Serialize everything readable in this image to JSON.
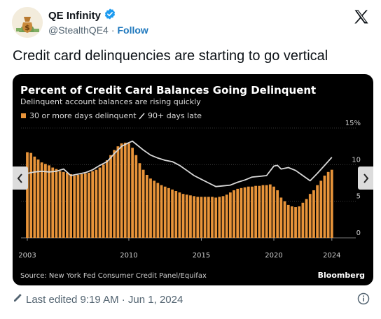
{
  "tweet": {
    "author_name": "QE Infinity",
    "author_handle": "@StealthQE4",
    "separator": "·",
    "follow_label": "Follow",
    "text": "Credit card delinquencies are starting to go vertical",
    "edited_label": "Last edited 9:19 AM · Jun 1, 2024"
  },
  "colors": {
    "bar": "#e8943a",
    "line": "#d8d8d8",
    "verified": "#1d9bf0",
    "follow": "#1d77bd"
  },
  "icons": {
    "verified": "verified-badge-icon",
    "x": "x-logo-icon",
    "edit": "pencil-icon",
    "info": "info-icon",
    "prev": "chevron-left-icon",
    "next": "chevron-right-icon"
  },
  "chart_data": {
    "type": "bar",
    "title": "Percent of Credit Card Balances Going Delinquent",
    "subtitle": "Delinquent account balances are rising quickly",
    "legend": [
      {
        "name": "30 or more days delinquent",
        "marker": "bar"
      },
      {
        "name": "90+ days late",
        "marker": "line"
      }
    ],
    "source": "Source: New York Fed Consumer Credit Panel/Equifax",
    "brand": "Bloomberg",
    "x_ticks": [
      "2003",
      "2010",
      "2015",
      "2020",
      "2024"
    ],
    "y_ticks": [
      "15%",
      "10",
      "5",
      "0"
    ],
    "ylim": [
      0,
      15
    ],
    "x_range": [
      2003.0,
      2024.25
    ],
    "series": [
      {
        "name": "30 or more days delinquent",
        "render": "bars",
        "x": [
          2003.0,
          2003.25,
          2003.5,
          2003.75,
          2004.0,
          2004.25,
          2004.5,
          2004.75,
          2005.0,
          2005.25,
          2005.5,
          2005.75,
          2006.0,
          2006.25,
          2006.5,
          2006.75,
          2007.0,
          2007.25,
          2007.5,
          2007.75,
          2008.0,
          2008.25,
          2008.5,
          2008.75,
          2009.0,
          2009.25,
          2009.5,
          2009.75,
          2010.0,
          2010.25,
          2010.5,
          2010.75,
          2011.0,
          2011.25,
          2011.5,
          2011.75,
          2012.0,
          2012.25,
          2012.5,
          2012.75,
          2013.0,
          2013.25,
          2013.5,
          2013.75,
          2014.0,
          2014.25,
          2014.5,
          2014.75,
          2015.0,
          2015.25,
          2015.5,
          2015.75,
          2016.0,
          2016.25,
          2016.5,
          2016.75,
          2017.0,
          2017.25,
          2017.5,
          2017.75,
          2018.0,
          2018.25,
          2018.5,
          2018.75,
          2019.0,
          2019.25,
          2019.5,
          2019.75,
          2020.0,
          2020.25,
          2020.5,
          2020.75,
          2021.0,
          2021.25,
          2021.5,
          2021.75,
          2022.0,
          2022.25,
          2022.5,
          2022.75,
          2023.0,
          2023.25,
          2023.5,
          2023.75,
          2024.0
        ],
        "values": [
          11.7,
          11.6,
          11.1,
          10.7,
          10.3,
          10.1,
          9.9,
          9.6,
          9.4,
          9.1,
          9.0,
          8.9,
          8.7,
          8.5,
          8.6,
          8.7,
          8.8,
          8.9,
          9.1,
          9.3,
          9.6,
          10.0,
          10.6,
          11.3,
          12.0,
          12.5,
          12.9,
          13.0,
          12.9,
          12.3,
          11.3,
          10.2,
          9.3,
          8.6,
          8.1,
          7.8,
          7.5,
          7.2,
          7.0,
          6.8,
          6.6,
          6.4,
          6.2,
          6.0,
          5.9,
          5.8,
          5.7,
          5.6,
          5.6,
          5.6,
          5.6,
          5.6,
          5.5,
          5.6,
          5.7,
          5.9,
          6.2,
          6.5,
          6.7,
          6.8,
          6.9,
          7.0,
          7.0,
          7.1,
          7.1,
          7.2,
          7.2,
          7.3,
          7.0,
          6.5,
          5.5,
          5.0,
          4.5,
          4.3,
          4.2,
          4.3,
          4.8,
          5.3,
          6.0,
          6.5,
          7.2,
          7.8,
          8.5,
          9.0,
          9.3
        ]
      },
      {
        "name": "90+ days late",
        "render": "line",
        "x": [
          2003.0,
          2003.5,
          2004.0,
          2004.5,
          2005.0,
          2005.5,
          2006.0,
          2006.5,
          2007.0,
          2007.5,
          2008.0,
          2008.5,
          2009.0,
          2009.5,
          2010.0,
          2010.25,
          2010.5,
          2011.0,
          2011.5,
          2012.0,
          2012.5,
          2013.0,
          2013.5,
          2014.0,
          2014.5,
          2015.0,
          2015.5,
          2016.0,
          2016.5,
          2017.0,
          2017.5,
          2018.0,
          2018.5,
          2019.0,
          2019.5,
          2020.0,
          2020.25,
          2020.5,
          2021.0,
          2021.5,
          2022.0,
          2022.5,
          2023.0,
          2023.5,
          2024.0
        ],
        "values": [
          8.8,
          9.0,
          9.1,
          9.0,
          9.1,
          9.4,
          8.5,
          8.7,
          8.9,
          9.3,
          9.9,
          10.4,
          11.5,
          12.5,
          13.0,
          13.2,
          12.8,
          12.0,
          11.3,
          10.9,
          10.6,
          10.4,
          9.9,
          9.2,
          8.5,
          8.0,
          7.5,
          7.0,
          7.1,
          7.2,
          7.6,
          7.9,
          8.3,
          8.4,
          8.5,
          9.8,
          9.9,
          9.4,
          9.6,
          9.2,
          8.5,
          7.8,
          8.8,
          9.9,
          11.0
        ]
      }
    ]
  }
}
